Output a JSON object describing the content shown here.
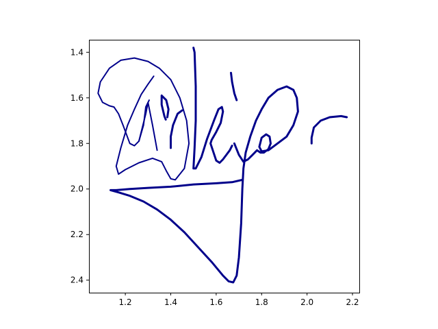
{
  "chart_data": {
    "type": "line",
    "title": "",
    "xlabel": "",
    "ylabel": "",
    "xlim": [
      1.04,
      2.23
    ],
    "ylim": [
      2.455,
      1.345
    ],
    "y_inverted": true,
    "grid": false,
    "legend": "none",
    "x_ticks": [
      1.2,
      1.4,
      1.6,
      1.8,
      2.0,
      2.2
    ],
    "x_tick_labels": [
      "1.2",
      "1.4",
      "1.6",
      "1.8",
      "2.0",
      "2.2"
    ],
    "y_ticks": [
      1.4,
      1.6,
      1.8,
      2.0,
      2.2,
      2.4
    ],
    "y_tick_labels": [
      "1.4",
      "1.6",
      "1.8",
      "2.0",
      "2.2",
      "2.4"
    ],
    "line_color": "#00008b",
    "series": [
      {
        "width": 2.0,
        "points": [
          [
            1.34,
            1.83
          ],
          [
            1.32,
            1.72
          ],
          [
            1.3,
            1.62
          ],
          [
            1.29,
            1.64
          ],
          [
            1.28,
            1.72
          ],
          [
            1.26,
            1.79
          ],
          [
            1.24,
            1.81
          ],
          [
            1.22,
            1.8
          ],
          [
            1.19,
            1.72
          ],
          [
            1.17,
            1.67
          ],
          [
            1.15,
            1.64
          ],
          [
            1.13,
            1.635
          ],
          [
            1.1,
            1.62
          ],
          [
            1.08,
            1.58
          ],
          [
            1.09,
            1.53
          ],
          [
            1.13,
            1.47
          ],
          [
            1.18,
            1.435
          ],
          [
            1.24,
            1.425
          ],
          [
            1.3,
            1.44
          ],
          [
            1.35,
            1.47
          ],
          [
            1.4,
            1.52
          ],
          [
            1.44,
            1.6
          ],
          [
            1.47,
            1.7
          ],
          [
            1.48,
            1.8
          ],
          [
            1.46,
            1.91
          ],
          [
            1.42,
            1.96
          ],
          [
            1.4,
            1.955
          ],
          [
            1.38,
            1.92
          ],
          [
            1.36,
            1.88
          ],
          [
            1.32,
            1.865
          ],
          [
            1.26,
            1.885
          ],
          [
            1.2,
            1.915
          ],
          [
            1.17,
            1.935
          ],
          [
            1.16,
            1.9
          ],
          [
            1.18,
            1.82
          ],
          [
            1.21,
            1.72
          ],
          [
            1.24,
            1.65
          ],
          [
            1.27,
            1.585
          ],
          [
            1.3,
            1.54
          ],
          [
            1.325,
            1.505
          ]
        ]
      },
      {
        "width": 2.0,
        "points": [
          [
            1.26,
            1.79
          ],
          [
            1.275,
            1.73
          ],
          [
            1.29,
            1.67
          ],
          [
            1.3,
            1.62
          ],
          [
            1.305,
            1.61
          ]
        ]
      },
      {
        "width": 3.0,
        "points": [
          [
            1.385,
            1.685
          ],
          [
            1.39,
            1.65
          ],
          [
            1.38,
            1.61
          ],
          [
            1.36,
            1.59
          ],
          [
            1.36,
            1.63
          ],
          [
            1.372,
            1.68
          ],
          [
            1.378,
            1.695
          ]
        ]
      },
      {
        "width": 3.0,
        "points": [
          [
            1.4,
            1.82
          ],
          [
            1.4,
            1.77
          ],
          [
            1.41,
            1.72
          ],
          [
            1.43,
            1.67
          ],
          [
            1.45,
            1.655
          ]
        ]
      },
      {
        "width": 3.0,
        "points": [
          [
            1.5,
            1.38
          ],
          [
            1.505,
            1.4
          ],
          [
            1.51,
            1.55
          ],
          [
            1.51,
            1.7
          ],
          [
            1.505,
            1.82
          ],
          [
            1.5,
            1.91
          ],
          [
            1.51,
            1.91
          ],
          [
            1.535,
            1.86
          ],
          [
            1.56,
            1.78
          ],
          [
            1.59,
            1.7
          ],
          [
            1.61,
            1.65
          ],
          [
            1.625,
            1.64
          ],
          [
            1.63,
            1.66
          ],
          [
            1.62,
            1.71
          ],
          [
            1.6,
            1.75
          ],
          [
            1.58,
            1.785
          ],
          [
            1.575,
            1.8
          ],
          [
            1.585,
            1.83
          ],
          [
            1.6,
            1.875
          ],
          [
            1.615,
            1.885
          ],
          [
            1.63,
            1.87
          ],
          [
            1.645,
            1.85
          ],
          [
            1.66,
            1.83
          ],
          [
            1.67,
            1.81
          ]
        ]
      },
      {
        "width": 3.0,
        "points": [
          [
            1.665,
            1.49
          ],
          [
            1.67,
            1.53
          ],
          [
            1.68,
            1.58
          ],
          [
            1.69,
            1.61
          ]
        ]
      },
      {
        "width": 3.0,
        "points": [
          [
            1.68,
            1.8
          ],
          [
            1.7,
            1.85
          ],
          [
            1.72,
            1.88
          ],
          [
            1.74,
            1.87
          ],
          [
            1.76,
            1.85
          ],
          [
            1.78,
            1.83
          ],
          [
            1.795,
            1.84
          ],
          [
            1.81,
            1.84
          ],
          [
            1.83,
            1.825
          ],
          [
            1.84,
            1.8
          ],
          [
            1.835,
            1.77
          ],
          [
            1.82,
            1.76
          ],
          [
            1.8,
            1.775
          ],
          [
            1.79,
            1.815
          ],
          [
            1.8,
            1.835
          ],
          [
            1.83,
            1.83
          ],
          [
            1.87,
            1.8
          ],
          [
            1.91,
            1.77
          ],
          [
            1.94,
            1.72
          ],
          [
            1.96,
            1.66
          ],
          [
            1.955,
            1.6
          ],
          [
            1.94,
            1.565
          ],
          [
            1.91,
            1.55
          ],
          [
            1.87,
            1.565
          ],
          [
            1.83,
            1.6
          ],
          [
            1.8,
            1.65
          ],
          [
            1.775,
            1.7
          ],
          [
            1.75,
            1.77
          ],
          [
            1.73,
            1.84
          ],
          [
            1.72,
            1.91
          ],
          [
            1.715,
            2.0
          ],
          [
            1.71,
            2.15
          ],
          [
            1.7,
            2.3
          ],
          [
            1.69,
            2.38
          ],
          [
            1.675,
            2.41
          ],
          [
            1.655,
            2.405
          ],
          [
            1.63,
            2.38
          ],
          [
            1.58,
            2.32
          ],
          [
            1.52,
            2.255
          ],
          [
            1.46,
            2.19
          ],
          [
            1.4,
            2.135
          ],
          [
            1.34,
            2.09
          ],
          [
            1.28,
            2.055
          ],
          [
            1.22,
            2.03
          ],
          [
            1.17,
            2.015
          ],
          [
            1.135,
            2.005
          ],
          [
            1.16,
            2.005
          ],
          [
            1.22,
            2.0
          ],
          [
            1.3,
            1.995
          ],
          [
            1.4,
            1.99
          ],
          [
            1.5,
            1.98
          ],
          [
            1.6,
            1.975
          ],
          [
            1.67,
            1.97
          ],
          [
            1.715,
            1.96
          ]
        ]
      },
      {
        "width": 3.0,
        "points": [
          [
            2.02,
            1.8
          ],
          [
            2.02,
            1.775
          ],
          [
            2.03,
            1.73
          ],
          [
            2.06,
            1.7
          ],
          [
            2.1,
            1.685
          ],
          [
            2.15,
            1.68
          ],
          [
            2.175,
            1.685
          ]
        ]
      }
    ]
  }
}
